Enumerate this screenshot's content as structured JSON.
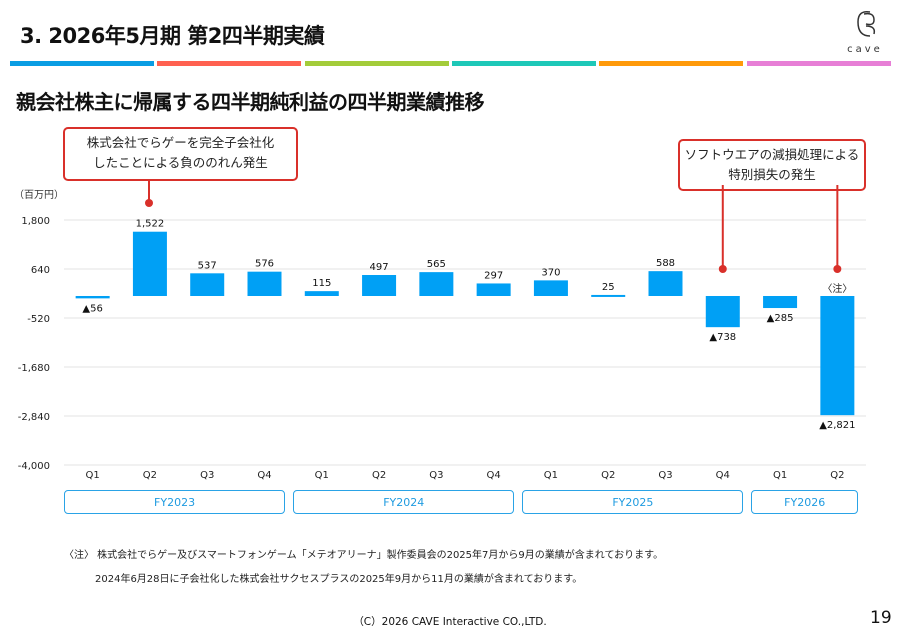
{
  "header": {
    "title": "3. 2026年5月期 第2四半期実績",
    "logo_text": "cave",
    "stripe_colors": [
      "#0a9de3",
      "#ff6150",
      "#a3cc3a",
      "#1ec8b8",
      "#ff9a0a",
      "#e77fd6"
    ]
  },
  "subtitle": "親会社株主に帰属する四半期純利益の四半期業績推移",
  "callouts": [
    {
      "lines": [
        "株式会社でらゲーを完全子会社化",
        "したことによる負ののれん発生"
      ]
    },
    {
      "lines": [
        "ソフトウエアの減損処理による",
        "特別損失の発生"
      ]
    }
  ],
  "chart_data": {
    "type": "bar",
    "ylabel": "（百万円）",
    "ylim": [
      -4000,
      1800
    ],
    "yticks": [
      1800,
      640,
      -520,
      -1680,
      -2840,
      -4000
    ],
    "ytick_labels": [
      "1,800",
      "640",
      "-520",
      "-1,680",
      "-2,840",
      "-4,000"
    ],
    "categories": [
      "Q1",
      "Q2",
      "Q3",
      "Q4",
      "Q1",
      "Q2",
      "Q3",
      "Q4",
      "Q1",
      "Q2",
      "Q3",
      "Q4",
      "Q1",
      "Q2"
    ],
    "groups": [
      {
        "label": "FY2023",
        "count": 4
      },
      {
        "label": "FY2024",
        "count": 4
      },
      {
        "label": "FY2025",
        "count": 4
      },
      {
        "label": "FY2026",
        "count": 2
      }
    ],
    "values": [
      -56,
      1522,
      537,
      576,
      115,
      497,
      565,
      297,
      370,
      25,
      588,
      -738,
      -285,
      -2821
    ],
    "data_labels": [
      "▲56",
      "1,522",
      "537",
      "576",
      "115",
      "497",
      "565",
      "297",
      "370",
      "25",
      "588",
      "▲738",
      "▲285",
      "▲2,821"
    ],
    "annotation": "〈注〉",
    "bar_color": "#00a0f5"
  },
  "notes": [
    "〈注〉 株式会社でらゲー及びスマートフォンゲーム「メテオアリーナ」製作委員会の2025年7月から9月の業績が含まれております。",
    "2024年6月28日に子会社化した株式会社サクセスプラスの2025年9月から11月の業績が含まれております。"
  ],
  "footer": "（C）2026 CAVE Interactive CO.,LTD.",
  "page_number": "19"
}
